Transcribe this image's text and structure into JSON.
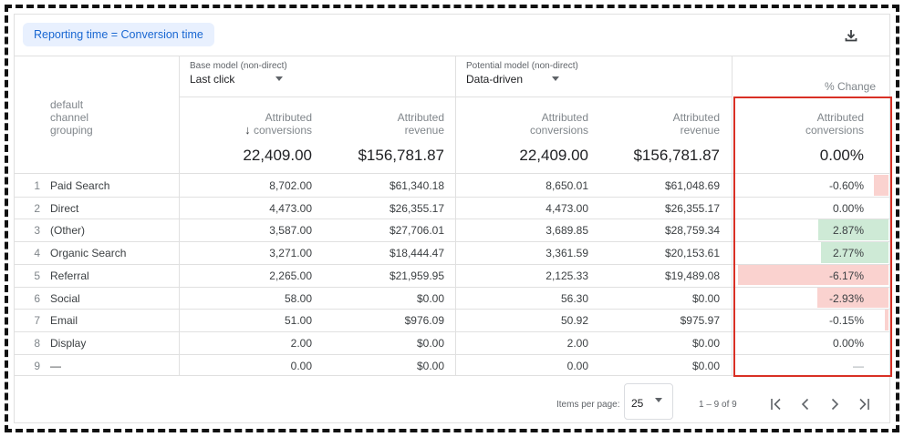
{
  "chip": {
    "label": "Reporting time = Conversion time"
  },
  "download": {
    "icon": "download-icon"
  },
  "models": {
    "base": {
      "caption": "Base model (non-direct)",
      "selected": "Last click"
    },
    "potential": {
      "caption": "Potential model (non-direct)",
      "selected": "Data-driven"
    },
    "change_caption": "% Change"
  },
  "columns": {
    "dimension": [
      "default",
      "channel",
      "grouping"
    ],
    "base_conversions": {
      "line1": "Attributed",
      "line2": "conversions",
      "sort_icon": "arrow-down-icon"
    },
    "base_revenue": {
      "line1": "Attributed",
      "line2": "revenue"
    },
    "pot_conversions": {
      "line1": "Attributed",
      "line2": "conversions"
    },
    "pot_revenue": {
      "line1": "Attributed",
      "line2": "revenue"
    },
    "change_conversions": {
      "line1": "Attributed",
      "line2": "conversions"
    }
  },
  "totals": {
    "base_conversions": "22,409.00",
    "base_revenue": "$156,781.87",
    "pot_conversions": "22,409.00",
    "pot_revenue": "$156,781.87",
    "change": "0.00%"
  },
  "rows": [
    {
      "num": "1",
      "label": "Paid Search",
      "base_conv": "8,702.00",
      "base_rev": "$61,340.18",
      "pot_conv": "8,650.01",
      "pot_rev": "$61,048.69",
      "change": "-0.60%",
      "change_value": -0.6
    },
    {
      "num": "2",
      "label": "Direct",
      "base_conv": "4,473.00",
      "base_rev": "$26,355.17",
      "pot_conv": "4,473.00",
      "pot_rev": "$26,355.17",
      "change": "0.00%",
      "change_value": 0.0
    },
    {
      "num": "3",
      "label": "(Other)",
      "base_conv": "3,587.00",
      "base_rev": "$27,706.01",
      "pot_conv": "3,689.85",
      "pot_rev": "$28,759.34",
      "change": "2.87%",
      "change_value": 2.87
    },
    {
      "num": "4",
      "label": "Organic Search",
      "base_conv": "3,271.00",
      "base_rev": "$18,444.47",
      "pot_conv": "3,361.59",
      "pot_rev": "$20,153.61",
      "change": "2.77%",
      "change_value": 2.77
    },
    {
      "num": "5",
      "label": "Referral",
      "base_conv": "2,265.00",
      "base_rev": "$21,959.95",
      "pot_conv": "2,125.33",
      "pot_rev": "$19,489.08",
      "change": "-6.17%",
      "change_value": -6.17
    },
    {
      "num": "6",
      "label": "Social",
      "base_conv": "58.00",
      "base_rev": "$0.00",
      "pot_conv": "56.30",
      "pot_rev": "$0.00",
      "change": "-2.93%",
      "change_value": -2.93
    },
    {
      "num": "7",
      "label": "Email",
      "base_conv": "51.00",
      "base_rev": "$976.09",
      "pot_conv": "50.92",
      "pot_rev": "$975.97",
      "change": "-0.15%",
      "change_value": -0.15
    },
    {
      "num": "8",
      "label": "Display",
      "base_conv": "2.00",
      "base_rev": "$0.00",
      "pot_conv": "2.00",
      "pot_rev": "$0.00",
      "change": "0.00%",
      "change_value": 0.0
    },
    {
      "num": "9",
      "label": "—",
      "base_conv": "0.00",
      "base_rev": "$0.00",
      "pot_conv": "0.00",
      "pot_rev": "$0.00",
      "change": "—",
      "change_value": null
    }
  ],
  "pagination": {
    "items_per_page_label": "Items per page:",
    "items_per_page": "25",
    "range": "1 – 9 of 9",
    "icons": [
      "first-page-icon",
      "previous-page-icon",
      "next-page-icon",
      "last-page-icon"
    ]
  },
  "colors": {
    "positive_bar": "#ceead6",
    "negative_bar": "#fad2cf",
    "highlight": "#d93025",
    "chip_bg": "#e8f0fe",
    "chip_text": "#1967d2"
  }
}
